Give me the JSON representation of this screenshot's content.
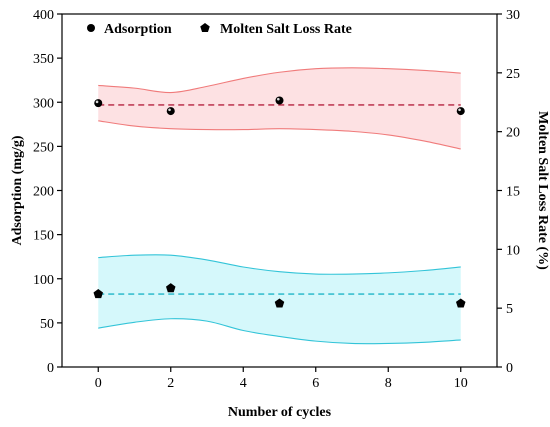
{
  "chart_data": {
    "type": "scatter",
    "xlabel": "Number of cycles",
    "ylabel_left": "Adsorption (mg/g)",
    "ylabel_right": "Molten Salt Loss Rate (%)",
    "xlim": [
      -1,
      11
    ],
    "ylim_left": [
      0,
      400
    ],
    "ylim_right": [
      0,
      30
    ],
    "x_ticks": [
      0,
      2,
      4,
      6,
      8,
      10
    ],
    "y_ticks_left": [
      0,
      50,
      100,
      150,
      200,
      250,
      300,
      350,
      400
    ],
    "y_ticks_right": [
      0,
      5,
      10,
      15,
      20,
      25,
      30
    ],
    "grid": false,
    "legend_position": "top",
    "series": [
      {
        "name": "Adsorption",
        "axis": "left",
        "marker": "circle",
        "color": "#000000",
        "x": [
          0,
          2,
          5,
          10
        ],
        "y": [
          299,
          290,
          302,
          290
        ],
        "mean_line": 297,
        "mean_color": "#b5223f",
        "band_color": "#fde1e3",
        "band_edge_color": "#f07b7b",
        "band_upper": [
          [
            0,
            319
          ],
          [
            1,
            316
          ],
          [
            2,
            311
          ],
          [
            3,
            318
          ],
          [
            4,
            327
          ],
          [
            5,
            334
          ],
          [
            6,
            338
          ],
          [
            7,
            339
          ],
          [
            8,
            338
          ],
          [
            9,
            336
          ],
          [
            10,
            333
          ]
        ],
        "band_lower": [
          [
            0,
            279
          ],
          [
            1,
            273
          ],
          [
            2,
            270
          ],
          [
            3,
            269
          ],
          [
            4,
            269
          ],
          [
            5,
            270
          ],
          [
            6,
            269
          ],
          [
            7,
            267
          ],
          [
            8,
            263
          ],
          [
            9,
            256
          ],
          [
            10,
            247
          ]
        ]
      },
      {
        "name": "Molten Salt Loss Rate",
        "axis": "right",
        "marker": "pentagon",
        "color": "#000000",
        "x": [
          0,
          2,
          5,
          10
        ],
        "y": [
          6.2,
          6.7,
          5.4,
          5.4
        ],
        "mean_line": 6.2,
        "mean_color": "#1fb5c8",
        "band_color": "#d5f8fb",
        "band_edge_color": "#33c4d8",
        "band_upper": [
          [
            0,
            9.3
          ],
          [
            1,
            9.5
          ],
          [
            2,
            9.5
          ],
          [
            3,
            9.1
          ],
          [
            4,
            8.5
          ],
          [
            5,
            8.1
          ],
          [
            6,
            7.9
          ],
          [
            7,
            7.9
          ],
          [
            8,
            8.0
          ],
          [
            9,
            8.2
          ],
          [
            10,
            8.5
          ]
        ],
        "band_lower": [
          [
            0,
            3.3
          ],
          [
            1,
            3.8
          ],
          [
            2,
            4.1
          ],
          [
            3,
            3.9
          ],
          [
            4,
            3.1
          ],
          [
            5,
            2.6
          ],
          [
            6,
            2.2
          ],
          [
            7,
            2.0
          ],
          [
            8,
            2.0
          ],
          [
            9,
            2.1
          ],
          [
            10,
            2.3
          ]
        ]
      }
    ]
  }
}
